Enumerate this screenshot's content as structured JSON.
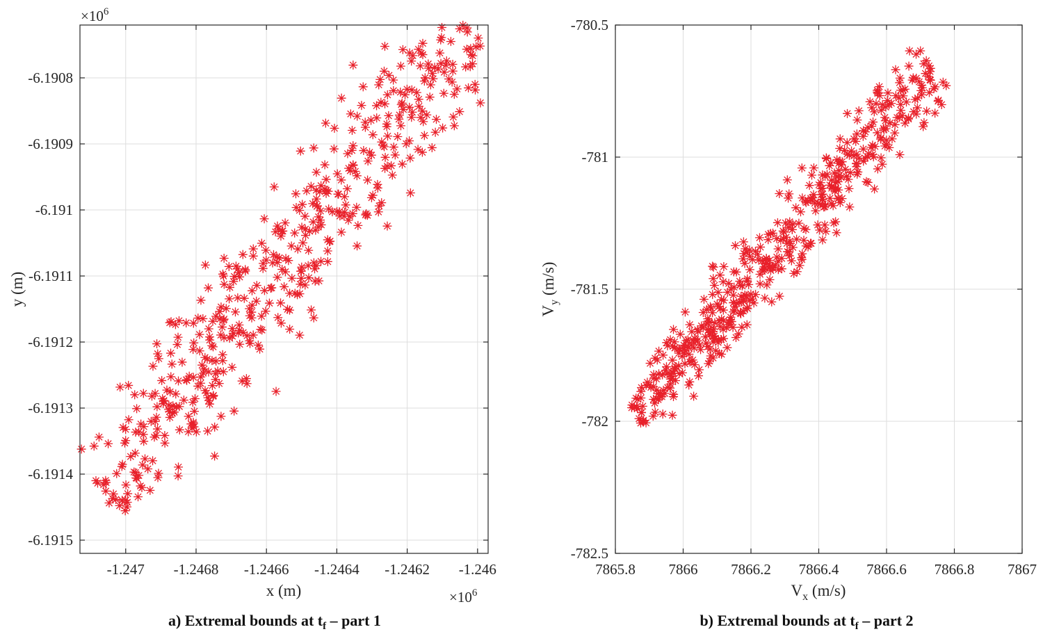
{
  "chart_data": [
    {
      "type": "scatter",
      "panel": "a",
      "caption": {
        "prefix": "a) Extremal bounds at t",
        "sub": "f",
        "suffix": " – part 1"
      },
      "xlabel": "x (m)",
      "ylabel": "y (m)",
      "x_exponent_label": "×10",
      "x_exponent": "6",
      "y_exponent_label": "×10",
      "y_exponent": "6",
      "xlim": [
        -1.24713,
        -1.24597
      ],
      "ylim": [
        -6.19152,
        -6.19072
      ],
      "x_ticks": [
        -1.247,
        -1.2468,
        -1.2466,
        -1.2464,
        -1.2462,
        -1.246
      ],
      "x_tick_labels": [
        "-1.247",
        "-1.2468",
        "-1.2466",
        "-1.2464",
        "-1.2462",
        "-1.246"
      ],
      "y_ticks": [
        -6.1908,
        -6.1909,
        -6.191,
        -6.1911,
        -6.1912,
        -6.1913,
        -6.1914,
        -6.1915
      ],
      "y_tick_labels": [
        "-6.1908",
        "-6.1909",
        "-6.191",
        "-6.1911",
        "-6.1912",
        "-6.1913",
        "-6.1914",
        "-6.1915"
      ],
      "grid": true,
      "marker": "*",
      "color": "#e8202a",
      "generator": {
        "count": 520,
        "t_range": [
          0,
          1
        ],
        "t_start": [
          -1.24706,
          -6.191435
        ],
        "t_end": [
          -1.24602,
          -6.190715
        ],
        "halfwidth": 0.17,
        "seed": 12345
      }
    },
    {
      "type": "scatter",
      "panel": "b",
      "caption": {
        "prefix": "b) Extremal bounds at t",
        "sub": "f",
        "suffix": " – part 2"
      },
      "xlabel": "V",
      "xlabel_sub": "x",
      "xlabel_suffix": " (m/s)",
      "ylabel": "V",
      "ylabel_sub": "y",
      "ylabel_suffix": " (m/s)",
      "xlim": [
        7865.8,
        7867.0
      ],
      "ylim": [
        -782.5,
        -780.5
      ],
      "x_ticks": [
        7865.8,
        7866,
        7866.2,
        7866.4,
        7866.6,
        7866.8,
        7867
      ],
      "x_tick_labels": [
        "7865.8",
        "7866",
        "7866.2",
        "7866.4",
        "7866.6",
        "7866.8",
        "7867"
      ],
      "y_ticks": [
        -780.5,
        -781,
        -781.5,
        -782,
        -782.5
      ],
      "y_tick_labels": [
        "-780.5",
        "-781",
        "-781.5",
        "-782",
        "-782.5"
      ],
      "grid": true,
      "marker": "*",
      "color": "#e8202a",
      "generator": {
        "count": 520,
        "t_start": [
          7865.86,
          -781.98
        ],
        "t_end": [
          7866.74,
          -780.66
        ],
        "halfwidth": 0.095,
        "seed": 6789
      }
    }
  ]
}
